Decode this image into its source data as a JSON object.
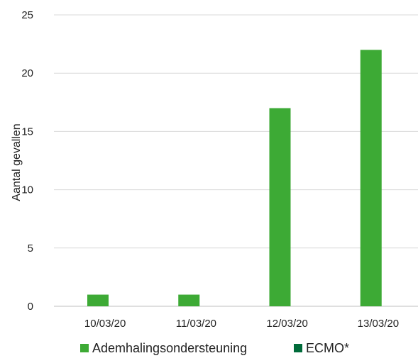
{
  "chart_data": {
    "type": "bar",
    "title": "",
    "xlabel": "",
    "ylabel": "Aantal gevallen",
    "categories": [
      "10/03/20",
      "11/03/20",
      "12/03/20",
      "13/03/20"
    ],
    "series": [
      {
        "name": "Ademhalingsondersteuning",
        "values": [
          1,
          1,
          17,
          22
        ],
        "color": "#3DAA35"
      },
      {
        "name": "ECMO*",
        "values": [
          0,
          0,
          0,
          0
        ],
        "color": "#006B3A"
      }
    ],
    "ylim": [
      0,
      25
    ],
    "yticks": [
      "0",
      "5",
      "10",
      "15",
      "20",
      "25"
    ],
    "grid": true,
    "legend_position": "bottom"
  }
}
